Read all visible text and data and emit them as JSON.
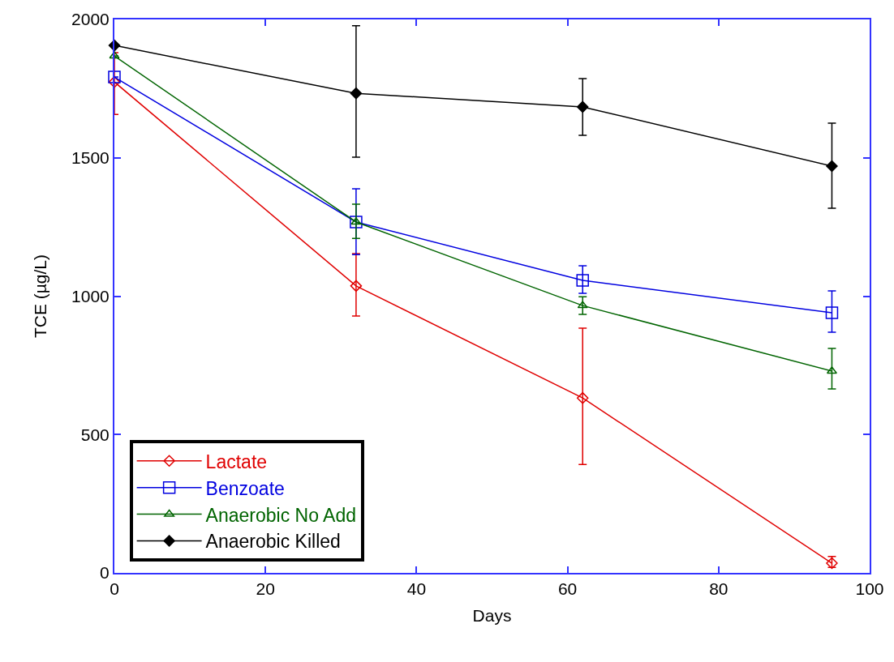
{
  "chart_data": {
    "type": "line",
    "xlabel": "Days",
    "ylabel": "TCE (µg/L)",
    "x": [
      0,
      32,
      62,
      95
    ],
    "xlim": [
      0,
      100
    ],
    "xticks": [
      0,
      20,
      40,
      60,
      80,
      100
    ],
    "ylim": [
      0,
      2000
    ],
    "yticks": [
      0,
      500,
      1000,
      1500,
      2000
    ],
    "legend": "bottom left",
    "line_style": "solid",
    "series": [
      {
        "name": "Lactate",
        "color": "#e00000",
        "marker": "diamond-open",
        "values": [
          1774,
          1037,
          632,
          35
        ],
        "errors": [
          [
            1657,
            1880
          ],
          [
            928,
            1154
          ],
          [
            392,
            884
          ],
          [
            20,
            59
          ]
        ]
      },
      {
        "name": "Benzoate",
        "color": "#0000e0",
        "marker": "square-open",
        "values": [
          1792,
          1268,
          1057,
          940
        ],
        "errors": [
          null,
          [
            1150,
            1388
          ],
          [
            1010,
            1110
          ],
          [
            870,
            1019
          ]
        ]
      },
      {
        "name": "Anaerobic No Add",
        "color": "#006400",
        "marker": "triangle-up-open",
        "values": [
          1868,
          1268,
          966,
          729
        ],
        "errors": [
          null,
          [
            1209,
            1332
          ],
          [
            934,
            998
          ],
          [
            665,
            811
          ]
        ]
      },
      {
        "name": "Anaerobic Killed",
        "color": "#000000",
        "marker": "diamond",
        "values": [
          1906,
          1733,
          1684,
          1470
        ],
        "errors": [
          null,
          [
            1502,
            1977
          ],
          [
            1581,
            1786
          ],
          [
            1318,
            1625
          ]
        ]
      }
    ]
  }
}
